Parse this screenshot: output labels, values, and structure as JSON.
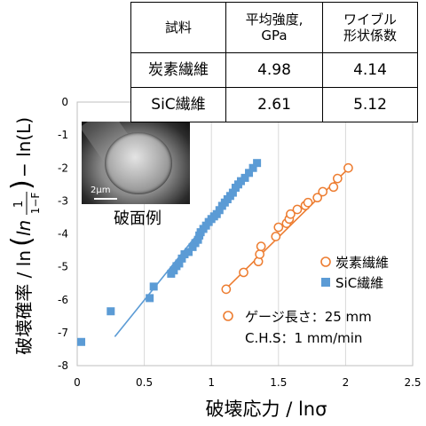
{
  "chart_data": {
    "type": "scatter",
    "xlabel": "破壊応力 / lnσ",
    "ylabel_main": "破壊確率 / ln",
    "ylabel_frac_num": "1",
    "ylabel_frac_den": "1−F",
    "ylabel_tail": "− ln(L)",
    "xlim": [
      0,
      2.5
    ],
    "ylim": [
      -8,
      0
    ],
    "x_ticks": [
      "0",
      "0.5",
      "1",
      "1.5",
      "2",
      "2.5"
    ],
    "y_ticks": [
      "0",
      "-1",
      "-2",
      "-3",
      "-4",
      "-5",
      "-6",
      "-7",
      "-8"
    ],
    "grid": "vertical-only",
    "legend_position": "right-middle",
    "inset_caption": "破面例",
    "inset_scale": "2μm",
    "conditions": [
      "ゲージ長さ：25 mm",
      "C.H.S：1 mm/min"
    ],
    "series": [
      {
        "name": "炭素繊維",
        "marker": "open-circle",
        "color": "#ed7d31",
        "points": [
          [
            1.11,
            -5.68
          ],
          [
            1.24,
            -5.17
          ],
          [
            1.35,
            -4.84
          ],
          [
            1.36,
            -4.62
          ],
          [
            1.37,
            -4.38
          ],
          [
            1.48,
            -4.08
          ],
          [
            1.5,
            -3.8
          ],
          [
            1.56,
            -3.68
          ],
          [
            1.58,
            -3.55
          ],
          [
            1.59,
            -3.4
          ],
          [
            1.64,
            -3.26
          ],
          [
            1.7,
            -3.14
          ],
          [
            1.72,
            -3.05
          ],
          [
            1.79,
            -2.9
          ],
          [
            1.83,
            -2.72
          ],
          [
            1.91,
            -2.58
          ],
          [
            1.94,
            -2.32
          ],
          [
            2.02,
            -2.0
          ]
        ],
        "fit": [
          [
            1.13,
            -5.58
          ],
          [
            2.02,
            -2.02
          ]
        ]
      },
      {
        "name": "SiC繊維",
        "marker": "filled-square",
        "color": "#5b9bd5",
        "points": [
          [
            0.03,
            -7.28
          ],
          [
            0.25,
            -6.35
          ],
          [
            0.54,
            -5.95
          ],
          [
            0.57,
            -5.6
          ],
          [
            0.7,
            -5.21
          ],
          [
            0.72,
            -5.11
          ],
          [
            0.74,
            -4.98
          ],
          [
            0.76,
            -4.9
          ],
          [
            0.78,
            -4.75
          ],
          [
            0.8,
            -4.62
          ],
          [
            0.83,
            -4.55
          ],
          [
            0.86,
            -4.4
          ],
          [
            0.88,
            -4.28
          ],
          [
            0.9,
            -4.18
          ],
          [
            0.91,
            -4.05
          ],
          [
            0.92,
            -3.95
          ],
          [
            0.94,
            -3.85
          ],
          [
            0.96,
            -3.75
          ],
          [
            0.98,
            -3.64
          ],
          [
            1.0,
            -3.55
          ],
          [
            1.02,
            -3.47
          ],
          [
            1.04,
            -3.4
          ],
          [
            1.06,
            -3.28
          ],
          [
            1.08,
            -3.15
          ],
          [
            1.1,
            -3.05
          ],
          [
            1.12,
            -2.95
          ],
          [
            1.14,
            -2.85
          ],
          [
            1.16,
            -2.75
          ],
          [
            1.18,
            -2.6
          ],
          [
            1.2,
            -2.5
          ],
          [
            1.22,
            -2.4
          ],
          [
            1.25,
            -2.3
          ],
          [
            1.28,
            -2.15
          ],
          [
            1.31,
            -2.0
          ],
          [
            1.34,
            -1.85
          ]
        ],
        "fit": [
          [
            0.28,
            -7.12
          ],
          [
            1.33,
            -1.82
          ]
        ]
      }
    ]
  },
  "table": {
    "headers": [
      "試料",
      "平均強度,\nGPa",
      "ワイブル\n形状係数"
    ],
    "rows": [
      [
        "炭素繊維",
        "4.98",
        "4.14"
      ],
      [
        "SiC繊維",
        "2.61",
        "5.12"
      ]
    ]
  }
}
